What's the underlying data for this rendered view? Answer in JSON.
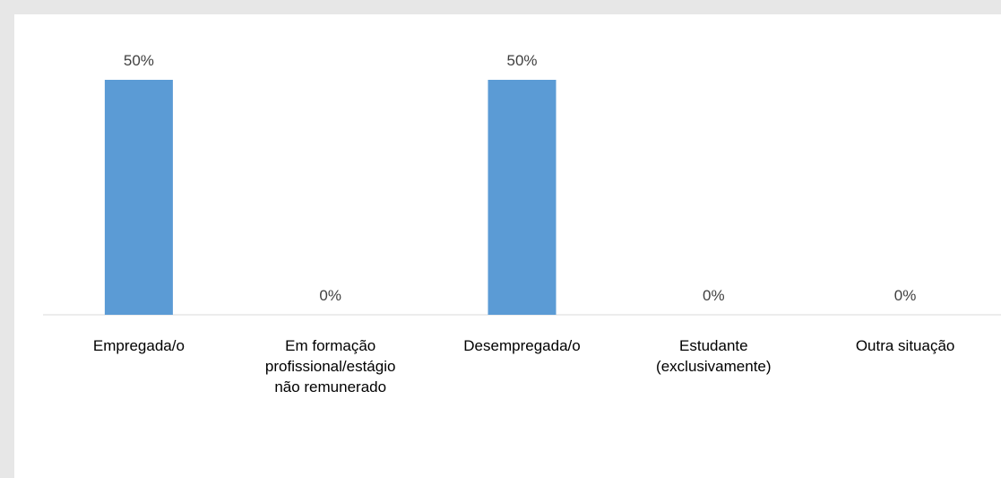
{
  "chart_data": {
    "type": "bar",
    "categories": [
      [
        "Empregada/o"
      ],
      [
        "Em formação",
        "profissional/estágio",
        "não remunerado"
      ],
      [
        "Desempregada/o"
      ],
      [
        "Estudante",
        "(exclusivamente)"
      ],
      [
        "Outra situação"
      ]
    ],
    "values": [
      50,
      0,
      50,
      0,
      0
    ],
    "data_labels": [
      "50%",
      "0%",
      "50%",
      "0%",
      "0%"
    ],
    "ylim": [
      0,
      50
    ],
    "grid": false,
    "bar_color": "#5b9bd5",
    "title": "",
    "xlabel": "",
    "ylabel": ""
  }
}
